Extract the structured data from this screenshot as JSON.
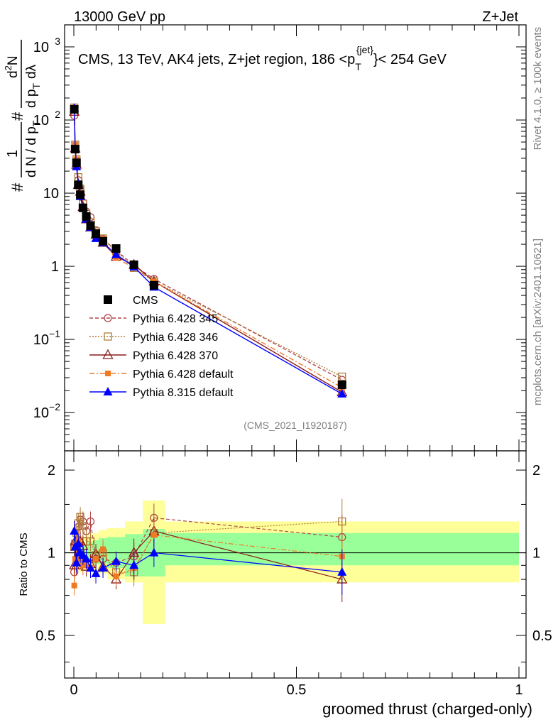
{
  "header": {
    "left": "13000 GeV pp",
    "right": "Z+Jet"
  },
  "chart_data": {
    "type": "line",
    "title": "CMS, 13 TeV, AK4 jets, Z+jet region, 186 <p",
    "title_sup": "{jet}",
    "title_sub": "T",
    "title_tail": "}< 254 GeV",
    "ylabel": "1/N dN/dλ (d²N / dpT dλ)",
    "ylabel_parts": {
      "a": "#",
      "b": "1",
      "c": "d N / d p",
      "d": "T",
      "e": "#",
      "f": "d",
      "g": "2",
      "h": "N",
      "i": "d p",
      "j": "d",
      "k": "λ"
    },
    "xlabel": "groomed thrust (charged-only)",
    "ratio_ylabel": "Ratio to CMS",
    "side_label_top": "Rivet 4.1.0, ≥ 100k events",
    "side_label_bottom": "mcplots.cern.ch [arXiv:2401.10621]",
    "analysis_id": "(CMS_2021_I1920187)",
    "xlim": [
      0,
      1
    ],
    "ylim_main": [
      0.003,
      2000
    ],
    "ylim_ratio": [
      0.35,
      2.35
    ],
    "x_ticks": [
      "0",
      "0.5",
      "1"
    ],
    "y_ticks_main": [
      {
        "v": 0.01,
        "base": "10",
        "exp": "−2"
      },
      {
        "v": 0.1,
        "base": "10",
        "exp": "−1"
      },
      {
        "v": 1,
        "base": "1",
        "exp": ""
      },
      {
        "v": 10,
        "base": "10",
        "exp": ""
      },
      {
        "v": 100,
        "base": "10",
        "exp": "2"
      },
      {
        "v": 1000,
        "base": "10",
        "exp": "3"
      }
    ],
    "y_ticks_ratio": [
      "0.5",
      "1",
      "2"
    ],
    "bin_edges": [
      0.0,
      0.002,
      0.004,
      0.008,
      0.012,
      0.017,
      0.024,
      0.032,
      0.043,
      0.056,
      0.075,
      0.115,
      0.155,
      0.205,
      1.0
    ],
    "points_x": [
      0.001,
      0.003,
      0.006,
      0.01,
      0.0145,
      0.0205,
      0.028,
      0.0375,
      0.0495,
      0.0655,
      0.095,
      0.135,
      0.18,
      0.6025
    ],
    "band_green": [
      [
        0.9,
        1.06
      ],
      [
        0.92,
        1.06
      ],
      [
        0.93,
        1.05
      ],
      [
        0.93,
        1.06
      ],
      [
        0.92,
        1.07
      ],
      [
        0.93,
        1.06
      ],
      [
        0.93,
        1.07
      ],
      [
        0.93,
        1.09
      ],
      [
        0.91,
        1.11
      ],
      [
        0.91,
        1.13
      ],
      [
        0.88,
        1.14
      ],
      [
        0.82,
        1.17
      ],
      [
        0.82,
        1.22
      ],
      [
        0.9,
        1.18
      ]
    ],
    "band_yellow": [
      [
        0.83,
        1.13
      ],
      [
        0.85,
        1.13
      ],
      [
        0.86,
        1.13
      ],
      [
        0.86,
        1.14
      ],
      [
        0.85,
        1.15
      ],
      [
        0.86,
        1.14
      ],
      [
        0.86,
        1.15
      ],
      [
        0.86,
        1.17
      ],
      [
        0.84,
        1.18
      ],
      [
        0.84,
        1.21
      ],
      [
        0.8,
        1.23
      ],
      [
        0.78,
        1.3
      ],
      [
        0.55,
        1.55
      ],
      [
        0.78,
        1.3
      ]
    ],
    "series": [
      {
        "name": "CMS",
        "color": "#000000",
        "marker": "square-filled",
        "dash": "none",
        "values": [
          140,
          40,
          26,
          13,
          9.5,
          6.3,
          4.8,
          3.6,
          2.8,
          2.2,
          1.75,
          1.05,
          0.55,
          0.024
        ]
      },
      {
        "name": "Pythia 6.428 345",
        "color": "#b2454a",
        "marker": "circle-open",
        "dash": "5,3",
        "values": [
          115,
          43,
          27,
          15,
          11.5,
          7.5,
          5.6,
          4.7,
          3.1,
          2.35,
          1.65,
          1.03,
          0.67,
          0.028
        ],
        "ratio": [
          0.85,
          1.05,
          1.08,
          1.24,
          1.32,
          1.3,
          1.2,
          1.3,
          0.95,
          0.95,
          0.92,
          0.97,
          1.34,
          1.14
        ]
      },
      {
        "name": "Pythia 6.428 346",
        "color": "#b07d3a",
        "marker": "square-open",
        "dash": "2,2",
        "values": [
          148,
          46,
          29,
          16.5,
          11.5,
          7.2,
          5.2,
          4.0,
          3.0,
          2.4,
          1.6,
          0.95,
          0.62,
          0.031
        ],
        "ratio": [
          1.05,
          1.08,
          1.18,
          1.28,
          1.35,
          1.25,
          1.1,
          1.1,
          0.98,
          1.0,
          0.85,
          0.85,
          1.18,
          1.3
        ]
      },
      {
        "name": "Pythia 6.428 370",
        "color": "#8b1a1a",
        "marker": "triangle-open",
        "dash": "none",
        "values": [
          130,
          41,
          24.5,
          13,
          10.5,
          6.5,
          4.4,
          3.4,
          2.7,
          2.1,
          1.35,
          1.05,
          0.62,
          0.019
        ],
        "ratio": [
          0.9,
          1.1,
          0.9,
          0.98,
          1.1,
          1.06,
          0.89,
          0.91,
          0.99,
          0.89,
          0.8,
          1.0,
          1.2,
          0.8
        ]
      },
      {
        "name": "Pythia 6.428 default",
        "color": "#f07a24",
        "marker": "square-filled-small",
        "dash": "7,3,2,3",
        "values": [
          148,
          46,
          29,
          13.5,
          9,
          6.5,
          4.6,
          3.3,
          2.8,
          2.35,
          1.3,
          0.95,
          0.62,
          0.022
        ],
        "ratio": [
          0.76,
          0.95,
          1.05,
          1.1,
          0.95,
          0.9,
          0.92,
          0.88,
          0.95,
          1.03,
          0.82,
          0.88,
          1.16,
          0.97
        ]
      },
      {
        "name": "Pythia 8.315 default",
        "color": "#0000ff",
        "marker": "triangle-filled",
        "dash": "none",
        "values": [
          145,
          41,
          23,
          13.5,
          9,
          6.3,
          4.4,
          3.4,
          2.4,
          2.1,
          1.45,
          0.98,
          0.52,
          0.018
        ],
        "ratio": [
          1.2,
          1.05,
          0.92,
          1.08,
          1.0,
          0.98,
          0.95,
          0.88,
          0.84,
          0.88,
          0.93,
          0.9,
          1.0,
          0.85
        ]
      }
    ]
  }
}
